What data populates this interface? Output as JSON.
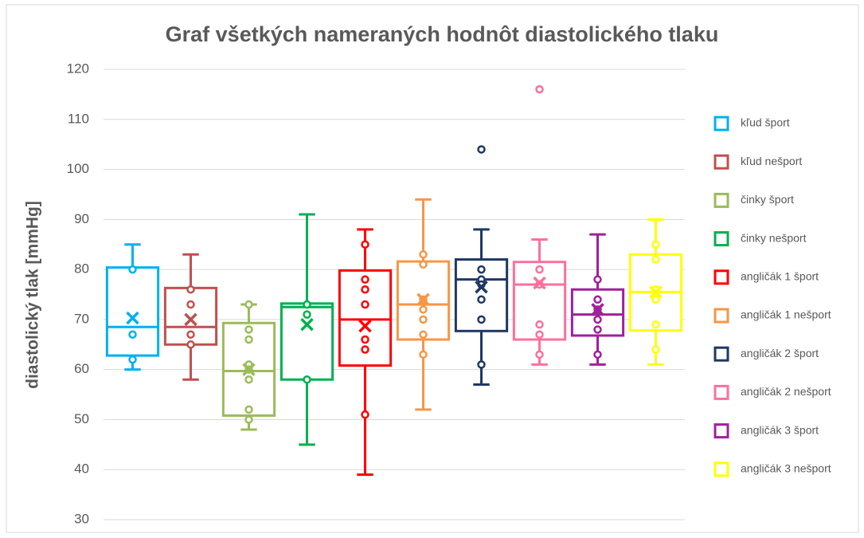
{
  "chart_data": {
    "type": "box",
    "title": "Graf všetkých nameraných hodnôt diastolického tlaku",
    "ylabel": "diastolický tlak [mmHg]",
    "ylim": [
      30,
      120
    ],
    "yticks": [
      30,
      40,
      50,
      60,
      70,
      80,
      90,
      100,
      110,
      120
    ],
    "grid": true,
    "legend": "right",
    "series": [
      {
        "name": "kľud šport",
        "color": "#00b0f0",
        "min": 60,
        "q1": 62.8,
        "median": 68.5,
        "q3": 80.4,
        "max": 85,
        "mean": 70.3,
        "points": [
          80,
          67,
          62
        ],
        "outliers": []
      },
      {
        "name": "kľud nešport",
        "color": "#c0504d",
        "min": 58,
        "q1": 65,
        "median": 68.5,
        "q3": 76.3,
        "max": 83,
        "mean": 70,
        "points": [
          76,
          73,
          67,
          65
        ],
        "outliers": []
      },
      {
        "name": "činky šport",
        "color": "#9bbb59",
        "min": 48,
        "q1": 50.8,
        "median": 59.7,
        "q3": 69.3,
        "max": 73,
        "mean": 60,
        "points": [
          73,
          68,
          66,
          61,
          60,
          58,
          52,
          50
        ],
        "outliers": []
      },
      {
        "name": "činky nešport",
        "color": "#00b050",
        "min": 45,
        "q1": 58,
        "median": 72.5,
        "q3": 73.2,
        "max": 91,
        "mean": 69,
        "points": [
          73,
          71,
          58
        ],
        "outliers": []
      },
      {
        "name": "angličák 1 šport",
        "color": "#ff0000",
        "min": 39,
        "q1": 60.8,
        "median": 70,
        "q3": 79.8,
        "max": 88,
        "mean": 68.7,
        "points": [
          85,
          78,
          76,
          73,
          66,
          64,
          51
        ],
        "outliers": []
      },
      {
        "name": "angličák 1 nešport",
        "color": "#f79646",
        "min": 52,
        "q1": 66,
        "median": 73,
        "q3": 81.6,
        "max": 94,
        "mean": 74,
        "points": [
          83,
          81,
          74,
          72,
          70,
          67,
          63
        ],
        "outliers": []
      },
      {
        "name": "angličák 2 šport",
        "color": "#1f3864",
        "min": 57,
        "q1": 67.7,
        "median": 78,
        "q3": 82,
        "max": 88,
        "mean": 76.5,
        "points": [
          80,
          78,
          77,
          74,
          70,
          61
        ],
        "outliers": [
          104
        ]
      },
      {
        "name": "angličák 2 nešport",
        "color": "#ff6f9c",
        "min": 61,
        "q1": 66,
        "median": 77,
        "q3": 81.5,
        "max": 86,
        "mean": 77.3,
        "points": [
          80,
          77,
          69,
          67,
          63
        ],
        "outliers": [
          116
        ]
      },
      {
        "name": "angličák 3 šport",
        "color": "#a0209b",
        "min": 61,
        "q1": 66.8,
        "median": 71,
        "q3": 76,
        "max": 87,
        "mean": 72,
        "points": [
          78,
          74,
          72,
          70,
          68,
          63
        ],
        "outliers": []
      },
      {
        "name": "angličák 3 nešport",
        "color": "#ffff00",
        "min": 61,
        "q1": 67.8,
        "median": 75.5,
        "q3": 83,
        "max": 90,
        "mean": 75.5,
        "points": [
          85,
          82,
          76,
          74,
          69,
          64
        ],
        "outliers": []
      }
    ]
  }
}
